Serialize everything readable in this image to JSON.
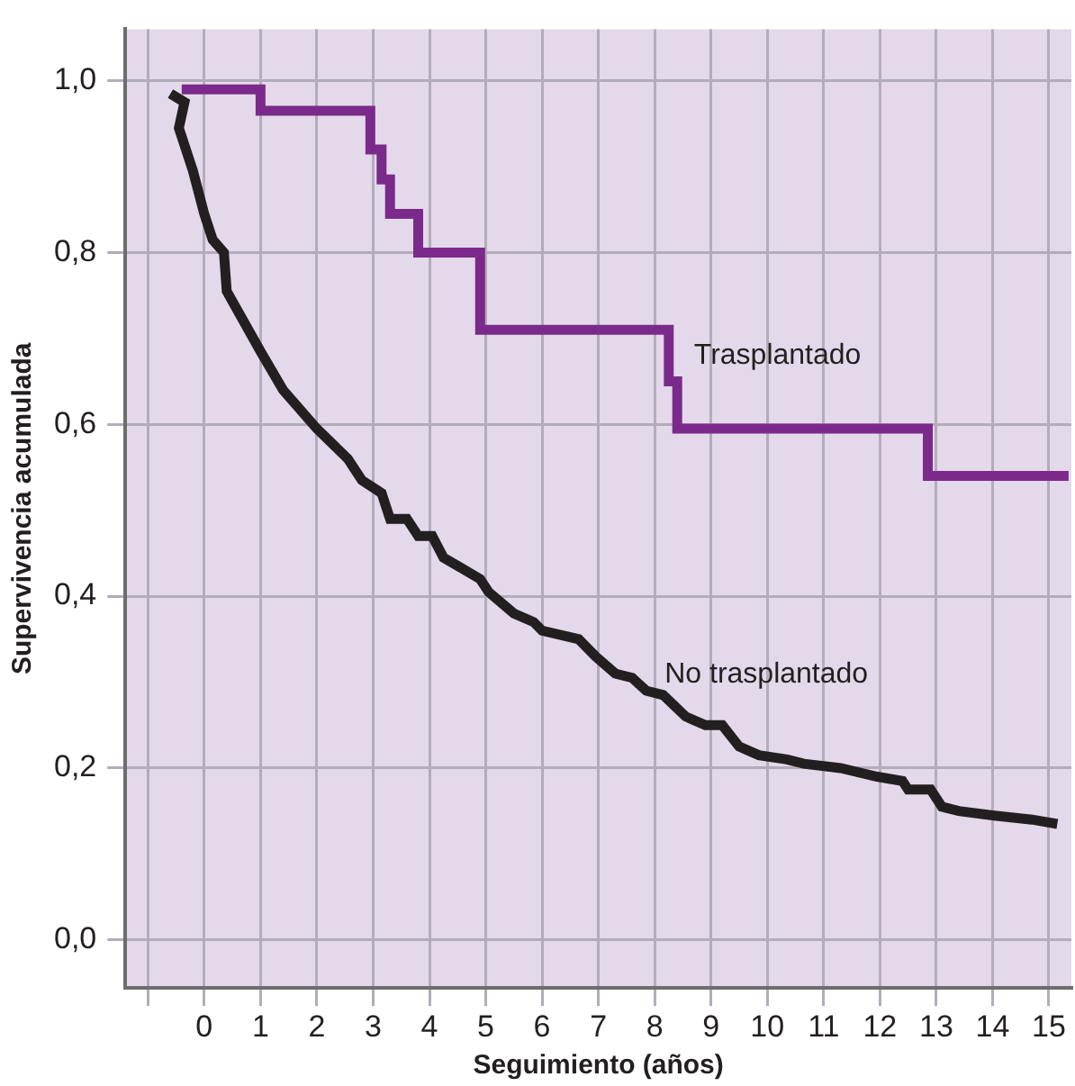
{
  "chart_data": {
    "type": "step",
    "xlabel": "Seguimiento (años)",
    "ylabel": "Supervivencia acumulada",
    "xlim": [
      -1.4,
      15.4
    ],
    "ylim": [
      -0.056,
      1.06
    ],
    "xticks": [
      {
        "value": -1,
        "label": null
      },
      0,
      1,
      2,
      3,
      4,
      5,
      6,
      7,
      8,
      9,
      10,
      11,
      12,
      13,
      14,
      15
    ],
    "yticks": [
      {
        "value": 0,
        "label": "0,0"
      },
      {
        "value": 0.2,
        "label": "0,2"
      },
      {
        "value": 0.4,
        "label": "0,4"
      },
      {
        "value": 0.6,
        "label": "0,6"
      },
      {
        "value": 0.8,
        "label": "0,8"
      },
      {
        "value": 1,
        "label": "1,0"
      }
    ],
    "grid": true,
    "legend": false,
    "marker": "none",
    "series": [
      {
        "name": "Trasplantado",
        "color": "#7b2a8c",
        "x": [
          -0.4,
          1,
          2.95,
          3.15,
          3.3,
          3.8,
          4.9,
          8.25,
          8.4,
          12.85,
          15.35
        ],
        "values": [
          0.99,
          0.965,
          0.92,
          0.885,
          0.845,
          0.8,
          0.71,
          0.65,
          0.595,
          0.54,
          0.54
        ]
      },
      {
        "name": "No trasplantado",
        "type": "line",
        "color": "#231f20",
        "x": [
          -0.6,
          -0.35,
          -0.45,
          -0.2,
          0,
          0.15,
          0.35,
          0.4,
          1,
          1.4,
          2,
          2.55,
          2.8,
          3.15,
          3.3,
          3.6,
          3.8,
          4.05,
          4.25,
          4.9,
          5.05,
          5.5,
          5.85,
          6,
          6.65,
          6.95,
          7.3,
          7.6,
          7.85,
          8.15,
          8.55,
          8.9,
          9.2,
          9.5,
          9.85,
          10.35,
          10.65,
          11.3,
          11.95,
          12.4,
          12.5,
          12.9,
          13.1,
          13.4,
          14,
          14.7,
          15.15
        ],
        "values": [
          0.985,
          0.975,
          0.945,
          0.895,
          0.845,
          0.815,
          0.8,
          0.755,
          0.685,
          0.64,
          0.595,
          0.56,
          0.535,
          0.52,
          0.49,
          0.49,
          0.47,
          0.47,
          0.445,
          0.42,
          0.405,
          0.38,
          0.37,
          0.36,
          0.35,
          0.33,
          0.31,
          0.305,
          0.29,
          0.285,
          0.26,
          0.25,
          0.25,
          0.225,
          0.215,
          0.21,
          0.205,
          0.2,
          0.19,
          0.185,
          0.175,
          0.175,
          0.155,
          0.15,
          0.145,
          0.14,
          0.135
        ]
      }
    ]
  }
}
